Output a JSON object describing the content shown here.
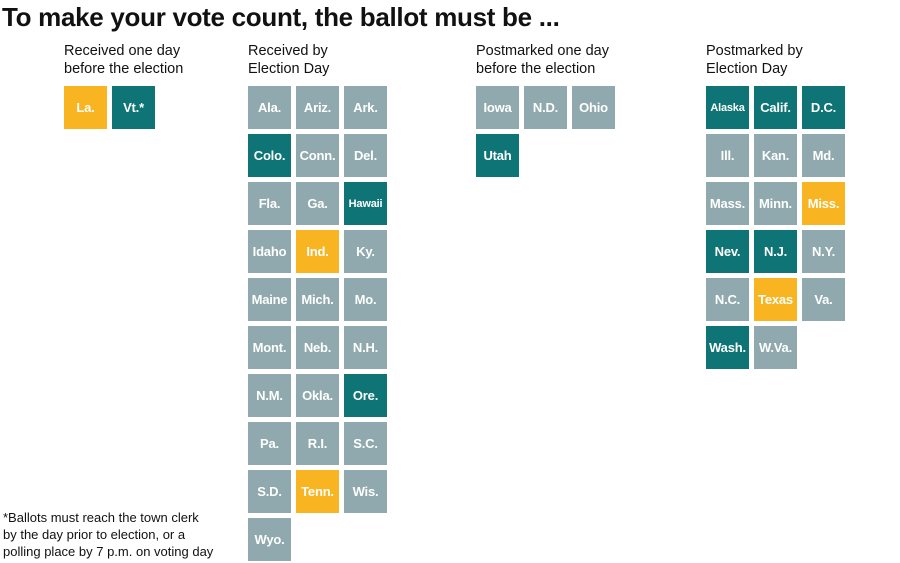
{
  "title": "To make your vote count, the ballot must be ...",
  "colors": {
    "gray": "#8fa9ae",
    "teal": "#0f7475",
    "yellow": "#f8b421"
  },
  "columns": [
    {
      "id": "received-one-day-before",
      "header": [
        "Received one day",
        "before the election"
      ],
      "tiles": [
        {
          "label": "La.",
          "color": "yellow"
        },
        {
          "label": "Vt.*",
          "color": "teal"
        }
      ]
    },
    {
      "id": "received-by-election-day",
      "header": [
        "Received by",
        "Election Day"
      ],
      "tiles": [
        {
          "label": "Ala.",
          "color": "gray"
        },
        {
          "label": "Ariz.",
          "color": "gray"
        },
        {
          "label": "Ark.",
          "color": "gray"
        },
        {
          "label": "Colo.",
          "color": "teal"
        },
        {
          "label": "Conn.",
          "color": "gray"
        },
        {
          "label": "Del.",
          "color": "gray"
        },
        {
          "label": "Fla.",
          "color": "gray"
        },
        {
          "label": "Ga.",
          "color": "gray"
        },
        {
          "label": "Hawaii",
          "color": "teal",
          "small": true
        },
        {
          "label": "Idaho",
          "color": "gray"
        },
        {
          "label": "Ind.",
          "color": "yellow"
        },
        {
          "label": "Ky.",
          "color": "gray"
        },
        {
          "label": "Maine",
          "color": "gray"
        },
        {
          "label": "Mich.",
          "color": "gray"
        },
        {
          "label": "Mo.",
          "color": "gray"
        },
        {
          "label": "Mont.",
          "color": "gray"
        },
        {
          "label": "Neb.",
          "color": "gray"
        },
        {
          "label": "N.H.",
          "color": "gray"
        },
        {
          "label": "N.M.",
          "color": "gray"
        },
        {
          "label": "Okla.",
          "color": "gray"
        },
        {
          "label": "Ore.",
          "color": "teal"
        },
        {
          "label": "Pa.",
          "color": "gray"
        },
        {
          "label": "R.I.",
          "color": "gray"
        },
        {
          "label": "S.C.",
          "color": "gray"
        },
        {
          "label": "S.D.",
          "color": "gray"
        },
        {
          "label": "Tenn.",
          "color": "yellow"
        },
        {
          "label": "Wis.",
          "color": "gray"
        },
        {
          "label": "Wyo.",
          "color": "gray"
        }
      ]
    },
    {
      "id": "postmarked-one-day-before",
      "header": [
        "Postmarked one day",
        "before the election"
      ],
      "tiles": [
        {
          "label": "Iowa",
          "color": "gray"
        },
        {
          "label": "N.D.",
          "color": "gray"
        },
        {
          "label": "Ohio",
          "color": "gray"
        },
        {
          "label": "Utah",
          "color": "teal"
        }
      ]
    },
    {
      "id": "postmarked-by-election-day",
      "header": [
        "Postmarked by",
        "Election Day"
      ],
      "tiles": [
        {
          "label": "Alaska",
          "color": "teal",
          "small": true
        },
        {
          "label": "Calif.",
          "color": "teal"
        },
        {
          "label": "D.C.",
          "color": "teal"
        },
        {
          "label": "Ill.",
          "color": "gray"
        },
        {
          "label": "Kan.",
          "color": "gray"
        },
        {
          "label": "Md.",
          "color": "gray"
        },
        {
          "label": "Mass.",
          "color": "gray"
        },
        {
          "label": "Minn.",
          "color": "gray"
        },
        {
          "label": "Miss.",
          "color": "yellow"
        },
        {
          "label": "Nev.",
          "color": "teal"
        },
        {
          "label": "N.J.",
          "color": "teal"
        },
        {
          "label": "N.Y.",
          "color": "gray"
        },
        {
          "label": "N.C.",
          "color": "gray"
        },
        {
          "label": "Texas",
          "color": "yellow"
        },
        {
          "label": "Va.",
          "color": "gray"
        },
        {
          "label": "Wash.",
          "color": "teal"
        },
        {
          "label": "W.Va.",
          "color": "gray"
        }
      ]
    }
  ],
  "footnote": [
    "*Ballots must reach the town clerk",
    "by the day prior to election, or a",
    "polling place by 7 p.m. on voting day"
  ]
}
